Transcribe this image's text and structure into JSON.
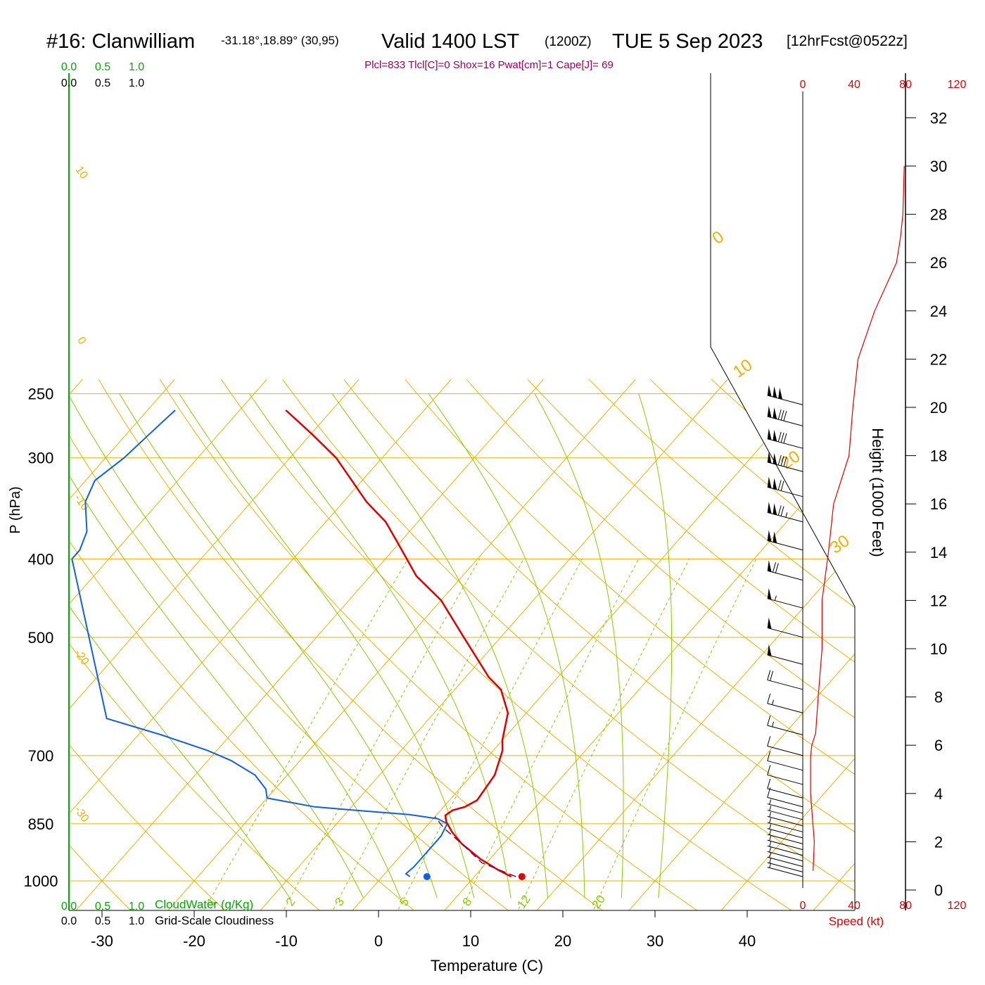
{
  "header": {
    "station": "#16: Clanwilliam",
    "coords": "-31.18°,18.89° (30,95)",
    "valid": "Valid 1400 LST",
    "zulu": "(1200Z)",
    "date": "TUE 5 Sep 2023",
    "forecast": "[12hrFcst@0522z]",
    "indices": "Plcl=833 Tlcl[C]=0 Shox=16 Pwat[cm]=1 Cape[J]= 69"
  },
  "colors": {
    "temperature": "#e00000",
    "dewpoint": "#1060e0",
    "parcel": "#6a0d6a",
    "isotherm_isobar": "#f0b000",
    "dry_adiabat": "#f0b000",
    "moist_adiabat": "#88cc00",
    "mixing_ratio": "#88cc00",
    "cloud": "#00aa00",
    "wind": "#000000",
    "speed": "#e00000",
    "title": "#000000",
    "indices": "#a0005a"
  },
  "chart_data": {
    "type": "skew-t log-p sounding",
    "xlabel": "Temperature (C)",
    "ylabel": "P (hPa)",
    "x_ticks": [
      -30,
      -20,
      -10,
      0,
      10,
      20,
      30,
      40
    ],
    "y_ticks": [
      250,
      300,
      400,
      500,
      700,
      850,
      1000
    ],
    "height_axis": {
      "label": "Height (1000 Feet)",
      "ticks": [
        0,
        2,
        4,
        6,
        8,
        10,
        12,
        14,
        16,
        18,
        20,
        22,
        24,
        26,
        28,
        30,
        32
      ]
    },
    "speed_axis": {
      "label": "Speed (kt)",
      "ticks": [
        0,
        40,
        80,
        120
      ]
    },
    "cloud_axes": {
      "cloudwater_label": "CloudWater (g/Kg)",
      "cloudiness_label": "Grid-Scale Cloudiness",
      "ticks": [
        "0.0",
        "0.5",
        "1.0"
      ]
    },
    "dry_adiabat_labels": [
      "10",
      "0",
      "-10",
      "-20",
      "-30"
    ],
    "dry_adiabat_labels_right": [
      "0",
      "10",
      "20",
      "30"
    ],
    "mixing_ratio_labels": [
      "1",
      "2",
      "3",
      "5",
      "8",
      "12",
      "20"
    ],
    "temperature_profile": [
      {
        "p": 988,
        "t": 14.0
      },
      {
        "p": 970,
        "t": 12.0
      },
      {
        "p": 940,
        "t": 9.0
      },
      {
        "p": 900,
        "t": 5.5
      },
      {
        "p": 870,
        "t": 3.3
      },
      {
        "p": 845,
        "t": 1.7
      },
      {
        "p": 830,
        "t": 1.0
      },
      {
        "p": 818,
        "t": 1.3
      },
      {
        "p": 810,
        "t": 2.3
      },
      {
        "p": 795,
        "t": 3.0
      },
      {
        "p": 740,
        "t": 2.5
      },
      {
        "p": 690,
        "t": 1.0
      },
      {
        "p": 670,
        "t": 0.0
      },
      {
        "p": 620,
        "t": -2.0
      },
      {
        "p": 580,
        "t": -5.0
      },
      {
        "p": 560,
        "t": -7.5
      },
      {
        "p": 500,
        "t": -14.0
      },
      {
        "p": 450,
        "t": -20.0
      },
      {
        "p": 420,
        "t": -25.0
      },
      {
        "p": 380,
        "t": -30.5
      },
      {
        "p": 360,
        "t": -33.5
      },
      {
        "p": 340,
        "t": -37.5
      },
      {
        "p": 300,
        "t": -45.0
      },
      {
        "p": 280,
        "t": -50.0
      },
      {
        "p": 262,
        "t": -55.0
      }
    ],
    "dewpoint_profile": [
      {
        "p": 988,
        "t": 3.0
      },
      {
        "p": 980,
        "t": 2.3
      },
      {
        "p": 960,
        "t": 2.5
      },
      {
        "p": 920,
        "t": 2.5
      },
      {
        "p": 880,
        "t": 2.5
      },
      {
        "p": 850,
        "t": 2.0
      },
      {
        "p": 838,
        "t": 0.5
      },
      {
        "p": 828,
        "t": -3.0
      },
      {
        "p": 820,
        "t": -8.0
      },
      {
        "p": 810,
        "t": -14.0
      },
      {
        "p": 790,
        "t": -20.0
      },
      {
        "p": 770,
        "t": -21.0
      },
      {
        "p": 740,
        "t": -23.5
      },
      {
        "p": 710,
        "t": -27.5
      },
      {
        "p": 690,
        "t": -31.0
      },
      {
        "p": 660,
        "t": -37.5
      },
      {
        "p": 630,
        "t": -45.0
      },
      {
        "p": 400,
        "t": -64.0
      },
      {
        "p": 390,
        "t": -64.0
      },
      {
        "p": 370,
        "t": -65.0
      },
      {
        "p": 340,
        "t": -68.0
      },
      {
        "p": 320,
        "t": -69.0
      },
      {
        "p": 300,
        "t": -68.0
      },
      {
        "p": 280,
        "t": -67.5
      },
      {
        "p": 262,
        "t": -67.0
      }
    ],
    "parcel_profile": [
      {
        "p": 988,
        "t": 14.5
      },
      {
        "p": 950,
        "t": 9.5
      },
      {
        "p": 900,
        "t": 5.5
      },
      {
        "p": 860,
        "t": 2.0
      },
      {
        "p": 833,
        "t": 0.0
      }
    ],
    "surface_temperature": 15.0,
    "surface_dewpoint": 5.0,
    "surface_pressure": 988,
    "wind_speed_profile": [
      {
        "h": 0.8,
        "kt": 8
      },
      {
        "h": 2,
        "kt": 9
      },
      {
        "h": 4,
        "kt": 6
      },
      {
        "h": 5.5,
        "kt": 6
      },
      {
        "h": 6,
        "kt": 7
      },
      {
        "h": 6.5,
        "kt": 10
      },
      {
        "h": 8,
        "kt": 12
      },
      {
        "h": 10,
        "kt": 15
      },
      {
        "h": 12,
        "kt": 15
      },
      {
        "h": 14,
        "kt": 20
      },
      {
        "h": 16,
        "kt": 24
      },
      {
        "h": 18,
        "kt": 36
      },
      {
        "h": 20,
        "kt": 39
      },
      {
        "h": 22,
        "kt": 43
      },
      {
        "h": 24,
        "kt": 56
      },
      {
        "h": 26,
        "kt": 73
      },
      {
        "h": 27,
        "kt": 76
      },
      {
        "h": 28,
        "kt": 78
      },
      {
        "h": 30,
        "kt": 79
      }
    ],
    "wind_barbs": [
      {
        "p": 988,
        "kt": 5
      },
      {
        "p": 975,
        "kt": 5
      },
      {
        "p": 960,
        "kt": 5
      },
      {
        "p": 945,
        "kt": 5
      },
      {
        "p": 930,
        "kt": 5
      },
      {
        "p": 915,
        "kt": 5
      },
      {
        "p": 900,
        "kt": 5
      },
      {
        "p": 885,
        "kt": 5
      },
      {
        "p": 870,
        "kt": 5
      },
      {
        "p": 855,
        "kt": 5
      },
      {
        "p": 840,
        "kt": 5
      },
      {
        "p": 825,
        "kt": 5
      },
      {
        "p": 810,
        "kt": 10
      },
      {
        "p": 790,
        "kt": 10
      },
      {
        "p": 760,
        "kt": 10
      },
      {
        "p": 730,
        "kt": 10
      },
      {
        "p": 700,
        "kt": 10
      },
      {
        "p": 660,
        "kt": 15
      },
      {
        "p": 620,
        "kt": 15
      },
      {
        "p": 580,
        "kt": 20
      },
      {
        "p": 540,
        "kt": 50
      },
      {
        "p": 500,
        "kt": 50
      },
      {
        "p": 460,
        "kt": 55
      },
      {
        "p": 425,
        "kt": 70
      },
      {
        "p": 390,
        "kt": 100
      },
      {
        "p": 360,
        "kt": 125
      },
      {
        "p": 335,
        "kt": 120
      },
      {
        "p": 312,
        "kt": 130
      },
      {
        "p": 292,
        "kt": 130
      },
      {
        "p": 274,
        "kt": 130
      },
      {
        "p": 258,
        "kt": 150
      }
    ]
  }
}
